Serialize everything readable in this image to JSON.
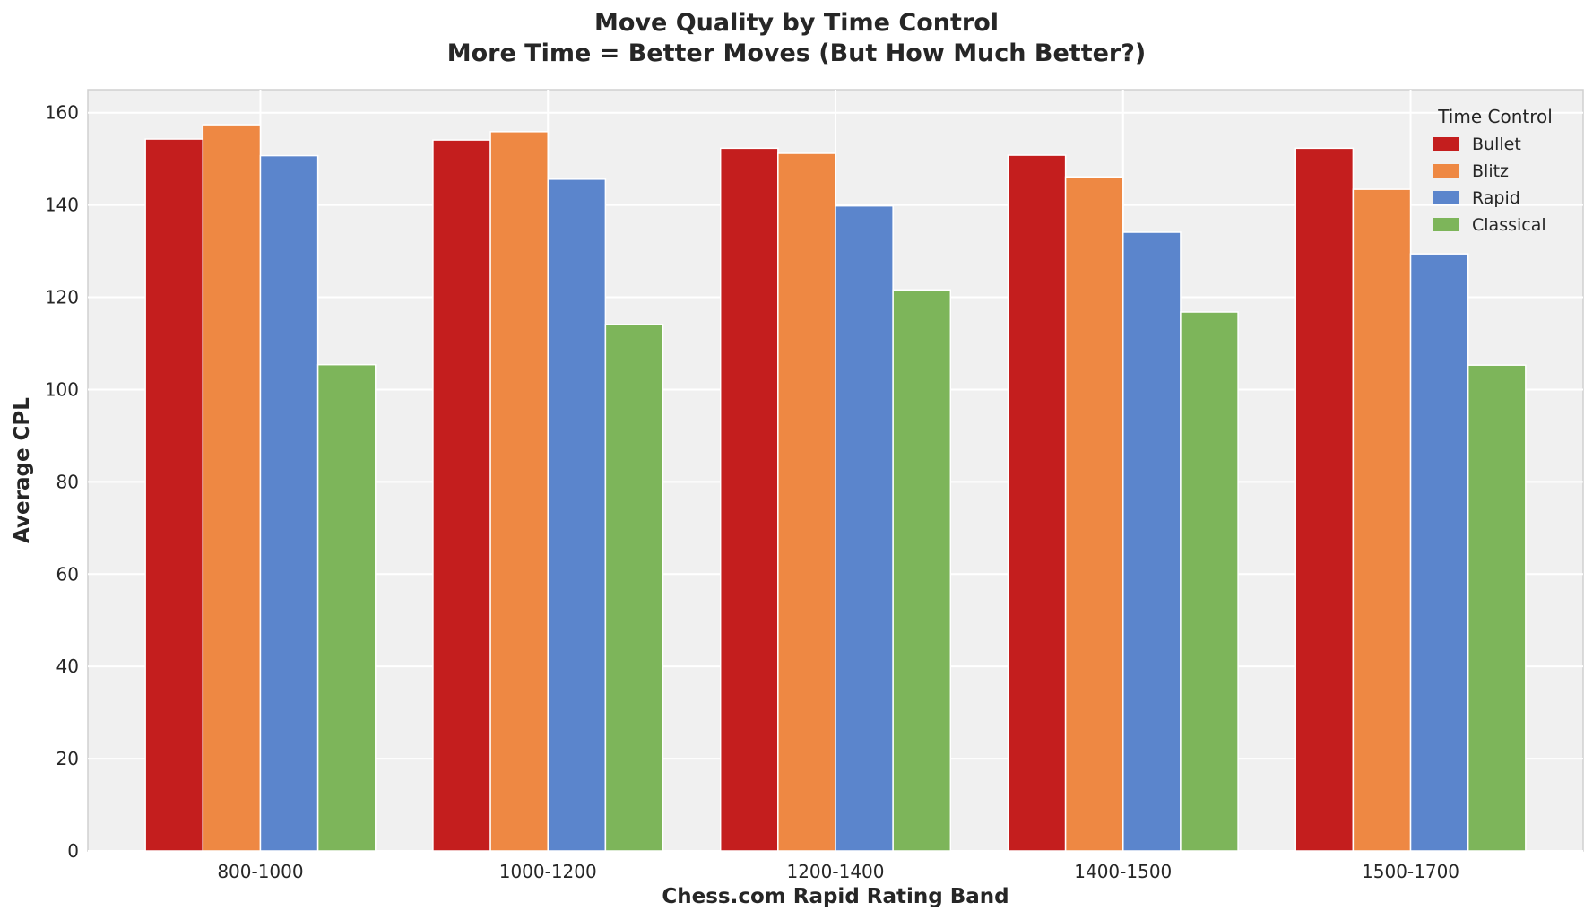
{
  "chart_data": {
    "type": "bar",
    "title": "Move Quality by Time Control",
    "subtitle": "More Time = Better Moves (But How Much Better?)",
    "xlabel": "Chess.com Rapid Rating Band",
    "ylabel": "Average CPL",
    "categories": [
      "800-1000",
      "1000-1200",
      "1200-1400",
      "1400-1500",
      "1500-1700"
    ],
    "ylim": [
      0,
      165
    ],
    "yticks": [
      0,
      20,
      40,
      60,
      80,
      100,
      120,
      140,
      160
    ],
    "grid": true,
    "legend": {
      "title": "Time Control",
      "placement": "top-right"
    },
    "series": [
      {
        "name": "Bullet",
        "color": "#c41e1e",
        "values": [
          154.3,
          154.1,
          152.3,
          150.8,
          152.3
        ]
      },
      {
        "name": "Blitz",
        "color": "#ee8843",
        "values": [
          157.4,
          155.9,
          151.2,
          146.1,
          143.4
        ]
      },
      {
        "name": "Rapid",
        "color": "#5b85cc",
        "values": [
          150.7,
          145.6,
          139.8,
          134.1,
          129.4
        ]
      },
      {
        "name": "Classical",
        "color": "#7db55a",
        "values": [
          105.4,
          114.1,
          121.6,
          116.8,
          105.3
        ]
      }
    ]
  }
}
